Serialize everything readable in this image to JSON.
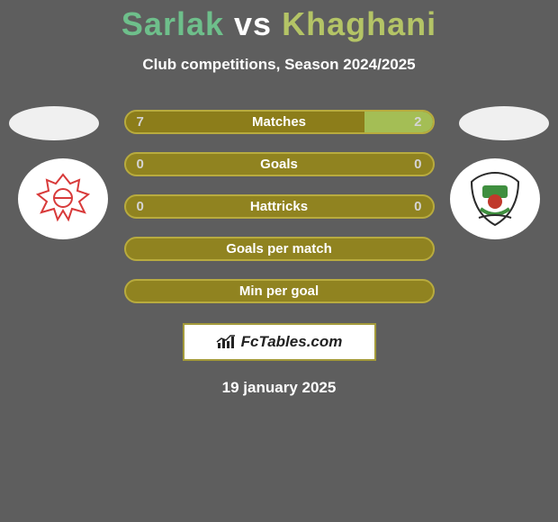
{
  "colors": {
    "page_bg": "#5e5e5e",
    "p1_color": "#6ebf8b",
    "vs_color": "#ffffff",
    "p2_color": "#b4c466",
    "subtitle_color": "#ffffff",
    "bar_track": "#908320",
    "bar_border": "#b8ab3e",
    "bar_fill_left": "#8c7d1a",
    "bar_fill_right": "#a4be55",
    "bar_text": "#ffffff",
    "bar_val_left": "#d4d4d4",
    "bar_val_right": "#d4d4d4",
    "avatar_oval": "#f0f0f0",
    "club_badge_bg": "#ffffff",
    "brand_box_bg": "#ffffff",
    "brand_box_border": "#a39a3a",
    "brand_text": "#222222",
    "date_color": "#ffffff",
    "crest1_stroke": "#d83a3a",
    "crest2_green": "#3f8f3f",
    "crest2_red": "#c0392b",
    "crest2_dark": "#2b2b2b"
  },
  "title": {
    "p1": "Sarlak",
    "vs": "vs",
    "p2": "Khaghani",
    "fontsize": 36
  },
  "subtitle": "Club competitions, Season 2024/2025",
  "bars": [
    {
      "label": "Matches",
      "left": "7",
      "right": "2",
      "left_pct": 78,
      "right_pct": 22,
      "show_vals": true
    },
    {
      "label": "Goals",
      "left": "0",
      "right": "0",
      "left_pct": 0,
      "right_pct": 0,
      "show_vals": true
    },
    {
      "label": "Hattricks",
      "left": "0",
      "right": "0",
      "left_pct": 0,
      "right_pct": 0,
      "show_vals": true
    },
    {
      "label": "Goals per match",
      "left": "",
      "right": "",
      "left_pct": 0,
      "right_pct": 0,
      "show_vals": false
    },
    {
      "label": "Min per goal",
      "left": "",
      "right": "",
      "left_pct": 0,
      "right_pct": 0,
      "show_vals": false
    }
  ],
  "brand": "FcTables.com",
  "date": "19 january 2025"
}
